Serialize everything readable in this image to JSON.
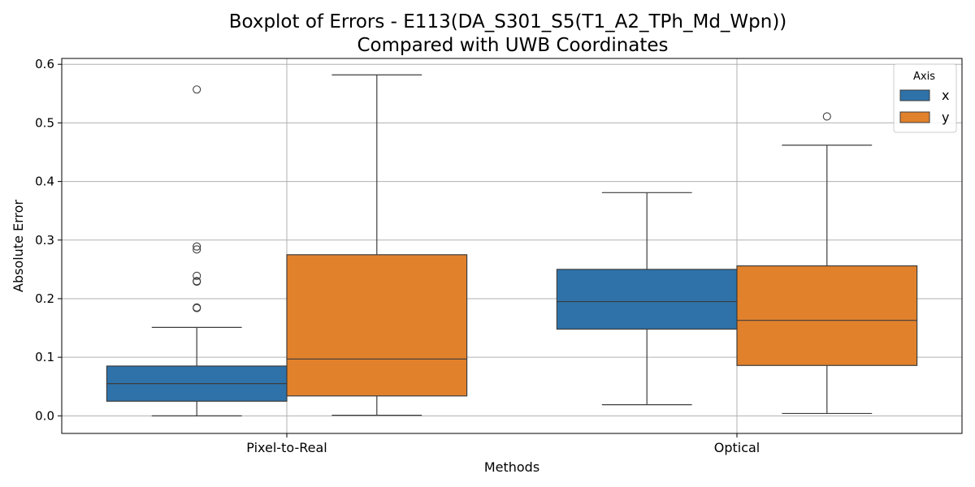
{
  "chart_data": {
    "type": "boxplot",
    "title": "Boxplot of Errors - E113(DA_S301_S5(T1_A2_TPh_Md_Wpn))",
    "subtitle": "Compared with UWB Coordinates",
    "xlabel": "Methods",
    "ylabel": "Absolute Error",
    "categories": [
      "Pixel-to-Real",
      "Optical"
    ],
    "ylim": [
      -0.03,
      0.61
    ],
    "yticks": [
      "0.0",
      "0.1",
      "0.2",
      "0.3",
      "0.4",
      "0.5",
      "0.6"
    ],
    "ytick_values": [
      0.0,
      0.1,
      0.2,
      0.3,
      0.4,
      0.5,
      0.6
    ],
    "grid": true,
    "legend": {
      "title": "Axis",
      "position": "top-right"
    },
    "series": [
      {
        "name": "x",
        "color": "#2e72a9",
        "boxes": [
          {
            "whisker_low": 0.0,
            "q1": 0.025,
            "median": 0.055,
            "q3": 0.085,
            "whisker_high": 0.151,
            "outliers": [
              0.184,
              0.185,
              0.229,
              0.23,
              0.239,
              0.284,
              0.289,
              0.557
            ]
          },
          {
            "whisker_low": 0.019,
            "q1": 0.148,
            "median": 0.195,
            "q3": 0.25,
            "whisker_high": 0.381,
            "outliers": []
          }
        ]
      },
      {
        "name": "y",
        "color": "#e1812c",
        "boxes": [
          {
            "whisker_low": 0.001,
            "q1": 0.034,
            "median": 0.097,
            "q3": 0.275,
            "whisker_high": 0.582,
            "outliers": []
          },
          {
            "whisker_low": 0.004,
            "q1": 0.086,
            "median": 0.163,
            "q3": 0.256,
            "whisker_high": 0.462,
            "outliers": [
              0.511
            ]
          }
        ]
      }
    ]
  }
}
